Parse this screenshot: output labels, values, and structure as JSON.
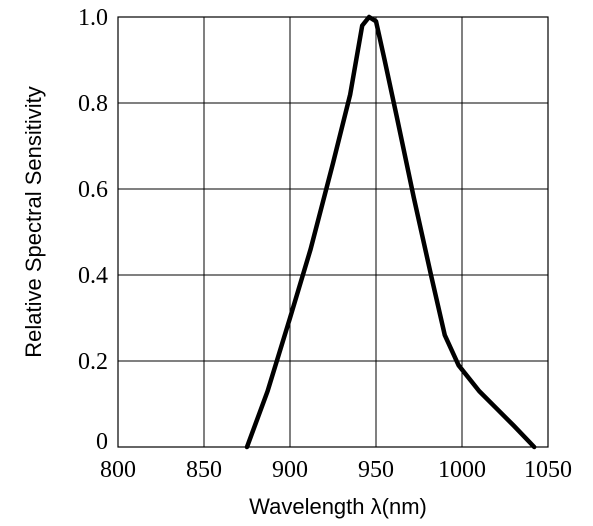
{
  "chart_data": {
    "type": "line",
    "title": "",
    "xlabel": "Wavelength  λ(nm)",
    "ylabel": "Relative Spectral Sensitivity",
    "xlim": [
      800,
      1050
    ],
    "ylim": [
      0,
      1.0
    ],
    "x_ticks": [
      800,
      850,
      900,
      950,
      1000,
      1050
    ],
    "x_tick_labels": [
      "800",
      "850",
      "900",
      "950",
      "1000",
      "1050"
    ],
    "y_ticks": [
      0,
      0.2,
      0.4,
      0.6,
      0.8,
      1.0
    ],
    "y_tick_labels": [
      "0",
      "0.2",
      "0.4",
      "0.6",
      "0.8",
      "1.0"
    ],
    "grid": true,
    "series": [
      {
        "x": [
          875,
          887,
          900,
          912,
          925,
          935,
          942,
          946,
          950,
          955,
          962,
          972,
          982,
          990,
          998,
          1010,
          1020,
          1030,
          1042
        ],
        "y": [
          0.0,
          0.13,
          0.3,
          0.46,
          0.66,
          0.82,
          0.98,
          1.0,
          0.99,
          0.9,
          0.77,
          0.58,
          0.4,
          0.26,
          0.19,
          0.13,
          0.09,
          0.05,
          0.0
        ]
      }
    ]
  }
}
